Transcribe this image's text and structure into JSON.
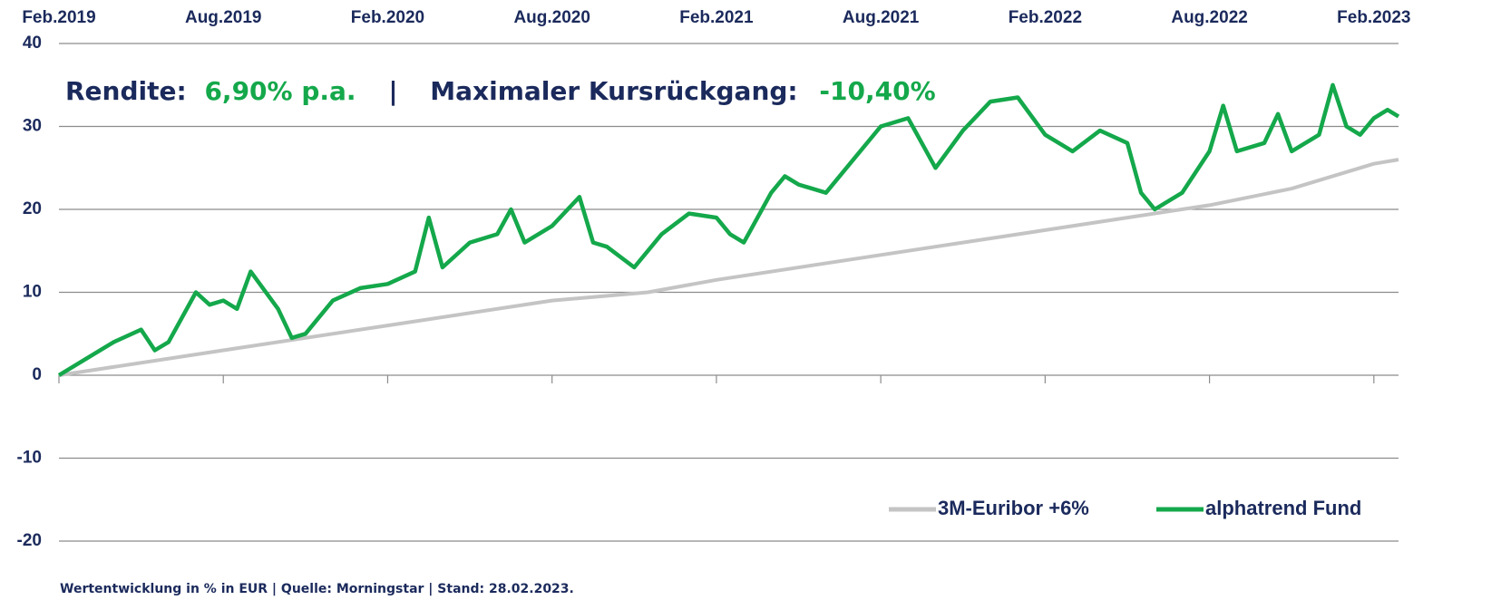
{
  "chart_data": {
    "type": "line",
    "headline": [
      {
        "text": "Rendite:",
        "color": "#1b2a5c"
      },
      {
        "text": "6,90% p.a.",
        "color": "#14a84b"
      },
      {
        "text": "|",
        "color": "#1b2a5c"
      },
      {
        "text": "Maximaler Kursrückgang:",
        "color": "#1b2a5c"
      },
      {
        "text": "-10,40%",
        "color": "#14a84b"
      }
    ],
    "footnote": "Wertentwicklung in % in EUR | Quelle: Morningstar  | Stand: 28.02.2023.",
    "xlim": [
      0,
      48.9
    ],
    "xticks": [
      {
        "value": 0,
        "label": "Feb.2019"
      },
      {
        "value": 6,
        "label": "Aug.2019"
      },
      {
        "value": 12,
        "label": "Feb.2020"
      },
      {
        "value": 18,
        "label": "Aug.2020"
      },
      {
        "value": 24,
        "label": "Feb.2021"
      },
      {
        "value": 30,
        "label": "Aug.2021"
      },
      {
        "value": 36,
        "label": "Feb.2022"
      },
      {
        "value": 42,
        "label": "Aug.2022"
      },
      {
        "value": 48,
        "label": "Feb.2023"
      }
    ],
    "ylim": [
      -20,
      40
    ],
    "yticks": [
      -20,
      -10,
      0,
      10,
      20,
      30,
      40
    ],
    "grid": true,
    "legend": "bottom-right",
    "series": [
      {
        "name": "3M-Euribor +6%",
        "color": "#c4c4c4",
        "x": [
          0,
          6,
          12,
          18,
          21.5,
          24,
          30,
          36,
          39,
          42,
          45,
          48,
          48.9
        ],
        "values": [
          0,
          3,
          6,
          9,
          10,
          11.5,
          14.5,
          17.5,
          19,
          20.5,
          22.5,
          25.5,
          26
        ]
      },
      {
        "name": "alphatrend Fund",
        "color": "#14a84b",
        "x": [
          0,
          1,
          2,
          3,
          3.5,
          4,
          5,
          5.5,
          6,
          6.5,
          7,
          8,
          8.5,
          9,
          10,
          11,
          12,
          13,
          13.5,
          14,
          15,
          16,
          16.5,
          17,
          18,
          19,
          19.5,
          20,
          21,
          22,
          23,
          24,
          24.5,
          25,
          26,
          26.5,
          27,
          28,
          29,
          30,
          31,
          32,
          33,
          34,
          35,
          36,
          37,
          38,
          39,
          39.5,
          40,
          41,
          42,
          42.5,
          43,
          44,
          44.5,
          45,
          46,
          46.5,
          47,
          47.5,
          48,
          48.5,
          48.9
        ],
        "values": [
          0,
          2,
          4,
          5.5,
          3,
          4,
          10,
          8.5,
          9,
          8,
          12.5,
          8,
          4.5,
          5,
          9,
          10.5,
          11,
          12.5,
          19,
          13,
          16,
          17,
          20,
          16,
          18,
          21.5,
          16,
          15.5,
          13,
          17,
          19.5,
          19,
          17,
          16,
          22,
          24,
          23,
          22,
          26,
          30,
          31,
          25,
          29.5,
          33,
          33.5,
          29,
          27,
          29.5,
          28,
          22,
          20,
          22,
          27,
          32.5,
          27,
          28,
          31.5,
          27,
          29,
          35,
          30,
          29,
          31,
          32,
          31.2
        ]
      }
    ]
  }
}
